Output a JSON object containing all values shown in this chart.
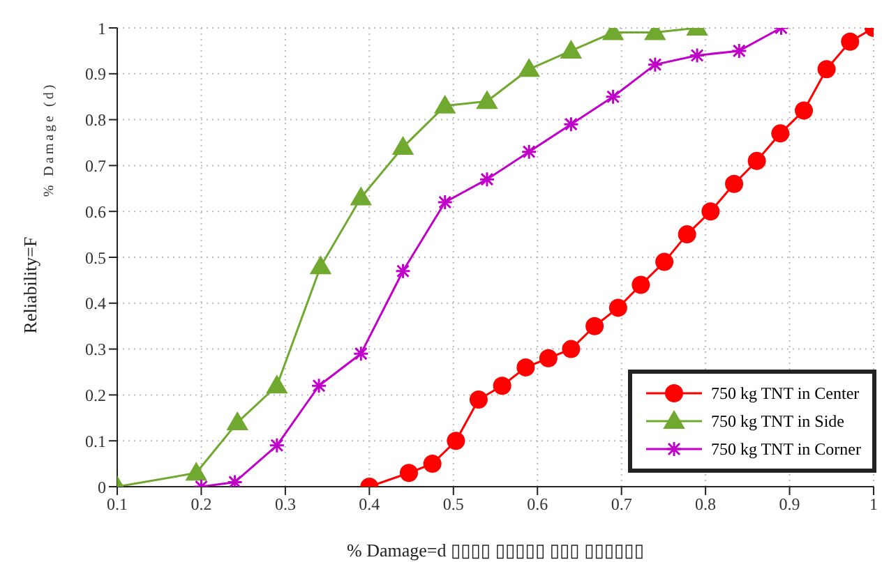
{
  "chart_data": {
    "type": "line",
    "xlabel": "% Damage=d ▯▯▯▯ ▯▯▯▯▯ ▯▯▯ ▯▯▯▯▯▯",
    "ylabel": "Reliability=F",
    "annotations": [
      "% Damage (d)"
    ],
    "xlim": [
      0.1,
      1
    ],
    "xticks": [
      0.1,
      0.2,
      0.3,
      0.4,
      0.5,
      0.6,
      0.7,
      0.8,
      0.9,
      1
    ],
    "ylim": [
      0,
      1
    ],
    "yticks": [
      0,
      0.1,
      0.2,
      0.3,
      0.4,
      0.5,
      0.6,
      0.7,
      0.8,
      0.9,
      1
    ],
    "grid": true,
    "legend": "bottom right",
    "line_style": "solid",
    "series": [
      {
        "name": "750 kg TNT in Center",
        "color": "#ff0000",
        "marker": "circle",
        "x": [
          0.4,
          0.447,
          0.475,
          0.503,
          0.53,
          0.558,
          0.586,
          0.613,
          0.64,
          0.668,
          0.696,
          0.723,
          0.751,
          0.778,
          0.806,
          0.834,
          0.861,
          0.889,
          0.917,
          0.944,
          0.972,
          1.0
        ],
        "values": [
          0,
          0.03,
          0.05,
          0.1,
          0.19,
          0.22,
          0.26,
          0.28,
          0.3,
          0.35,
          0.39,
          0.44,
          0.49,
          0.55,
          0.6,
          0.66,
          0.71,
          0.77,
          0.82,
          0.91,
          0.97,
          1.0
        ]
      },
      {
        "name": "750 kg TNT in Side",
        "color": "#70a830",
        "marker": "triangle",
        "x": [
          0.1,
          0.194,
          0.243,
          0.29,
          0.342,
          0.39,
          0.44,
          0.49,
          0.54,
          0.59,
          0.64,
          0.69,
          0.74,
          0.79
        ],
        "values": [
          0,
          0.03,
          0.14,
          0.22,
          0.48,
          0.63,
          0.74,
          0.83,
          0.84,
          0.91,
          0.95,
          0.99,
          0.99,
          1.0
        ]
      },
      {
        "name": "750 kg TNT in Corner",
        "color": "#c000c8",
        "marker": "cross",
        "x": [
          0.2,
          0.24,
          0.29,
          0.34,
          0.39,
          0.44,
          0.49,
          0.54,
          0.59,
          0.64,
          0.69,
          0.74,
          0.79,
          0.84,
          0.89
        ],
        "values": [
          0,
          0.01,
          0.09,
          0.22,
          0.29,
          0.47,
          0.62,
          0.67,
          0.73,
          0.79,
          0.85,
          0.92,
          0.94,
          0.95,
          1.0
        ]
      }
    ]
  }
}
